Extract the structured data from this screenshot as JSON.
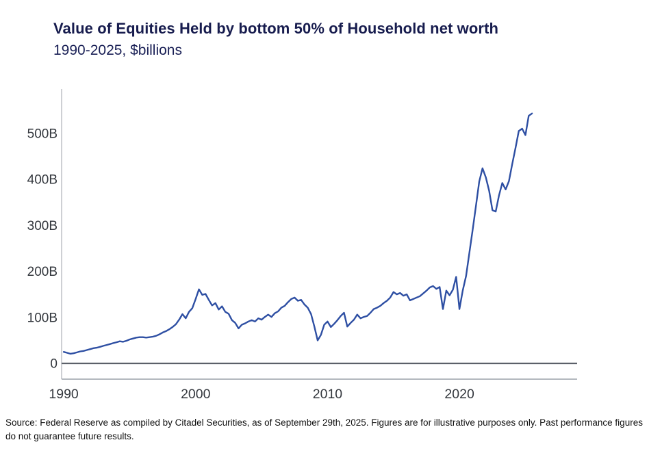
{
  "header": {
    "title": "Value of Equities Held by bottom 50% of Household net worth",
    "subtitle": "1990-2025, $billions"
  },
  "footer": {
    "source": "Source: Federal Reserve as compiled by Citadel Securities, as of September 29th, 2025. Figures are for illustrative purposes only. Past performance figures do not guarantee future results."
  },
  "colors": {
    "line": "#2e4fa3",
    "title_navy": "#171c4e",
    "zero_line": "#5b6069",
    "plot_border": "#9aa0a8",
    "tick_text": "#33373d"
  },
  "chart_data": {
    "type": "line",
    "title": "Value of Equities Held by bottom 50% of Household net worth",
    "subtitle": "1990-2025, $billions",
    "unit": "$billions",
    "grid": false,
    "legend": "none",
    "x_start_year": 1990,
    "points_per_year": 4,
    "xlim": [
      1989.84,
      2028.92
    ],
    "ylim": [
      -34.2,
      596.3
    ],
    "x_ticks": [
      {
        "v": 1990,
        "label": "1990"
      },
      {
        "v": 2000,
        "label": "2000"
      },
      {
        "v": 2010,
        "label": "2010"
      },
      {
        "v": 2020,
        "label": "2020"
      }
    ],
    "y_ticks": [
      {
        "v": 500,
        "label": "500B"
      },
      {
        "v": 400,
        "label": "400B"
      },
      {
        "v": 300,
        "label": "300B"
      },
      {
        "v": 200,
        "label": "200B"
      },
      {
        "v": 100,
        "label": "100B"
      },
      {
        "v": 0,
        "label": "0"
      }
    ],
    "series_name": "Value of equities held by bottom 50% ($B, quarterly)",
    "values": [
      25,
      23,
      21,
      22,
      24,
      26,
      27,
      29,
      31,
      33,
      34,
      36,
      38,
      40,
      42,
      44,
      46,
      48,
      47,
      49,
      52,
      54,
      56,
      57,
      57,
      56,
      57,
      58,
      60,
      63,
      67,
      70,
      74,
      79,
      85,
      95,
      107,
      98,
      112,
      120,
      140,
      161,
      149,
      151,
      138,
      126,
      131,
      117,
      124,
      112,
      108,
      94,
      88,
      76,
      84,
      87,
      91,
      94,
      91,
      98,
      95,
      101,
      106,
      101,
      109,
      113,
      121,
      125,
      133,
      140,
      143,
      136,
      138,
      128,
      121,
      107,
      80,
      50,
      62,
      84,
      91,
      79,
      86,
      94,
      103,
      110,
      80,
      88,
      95,
      106,
      98,
      101,
      103,
      110,
      118,
      121,
      125,
      131,
      136,
      143,
      155,
      150,
      153,
      147,
      150,
      137,
      140,
      143,
      146,
      152,
      158,
      165,
      168,
      162,
      166,
      118,
      158,
      148,
      160,
      188,
      118,
      158,
      190,
      240,
      290,
      342,
      395,
      424,
      404,
      375,
      333,
      330,
      365,
      392,
      378,
      396,
      433,
      468,
      505,
      510,
      496,
      538,
      543
    ]
  }
}
